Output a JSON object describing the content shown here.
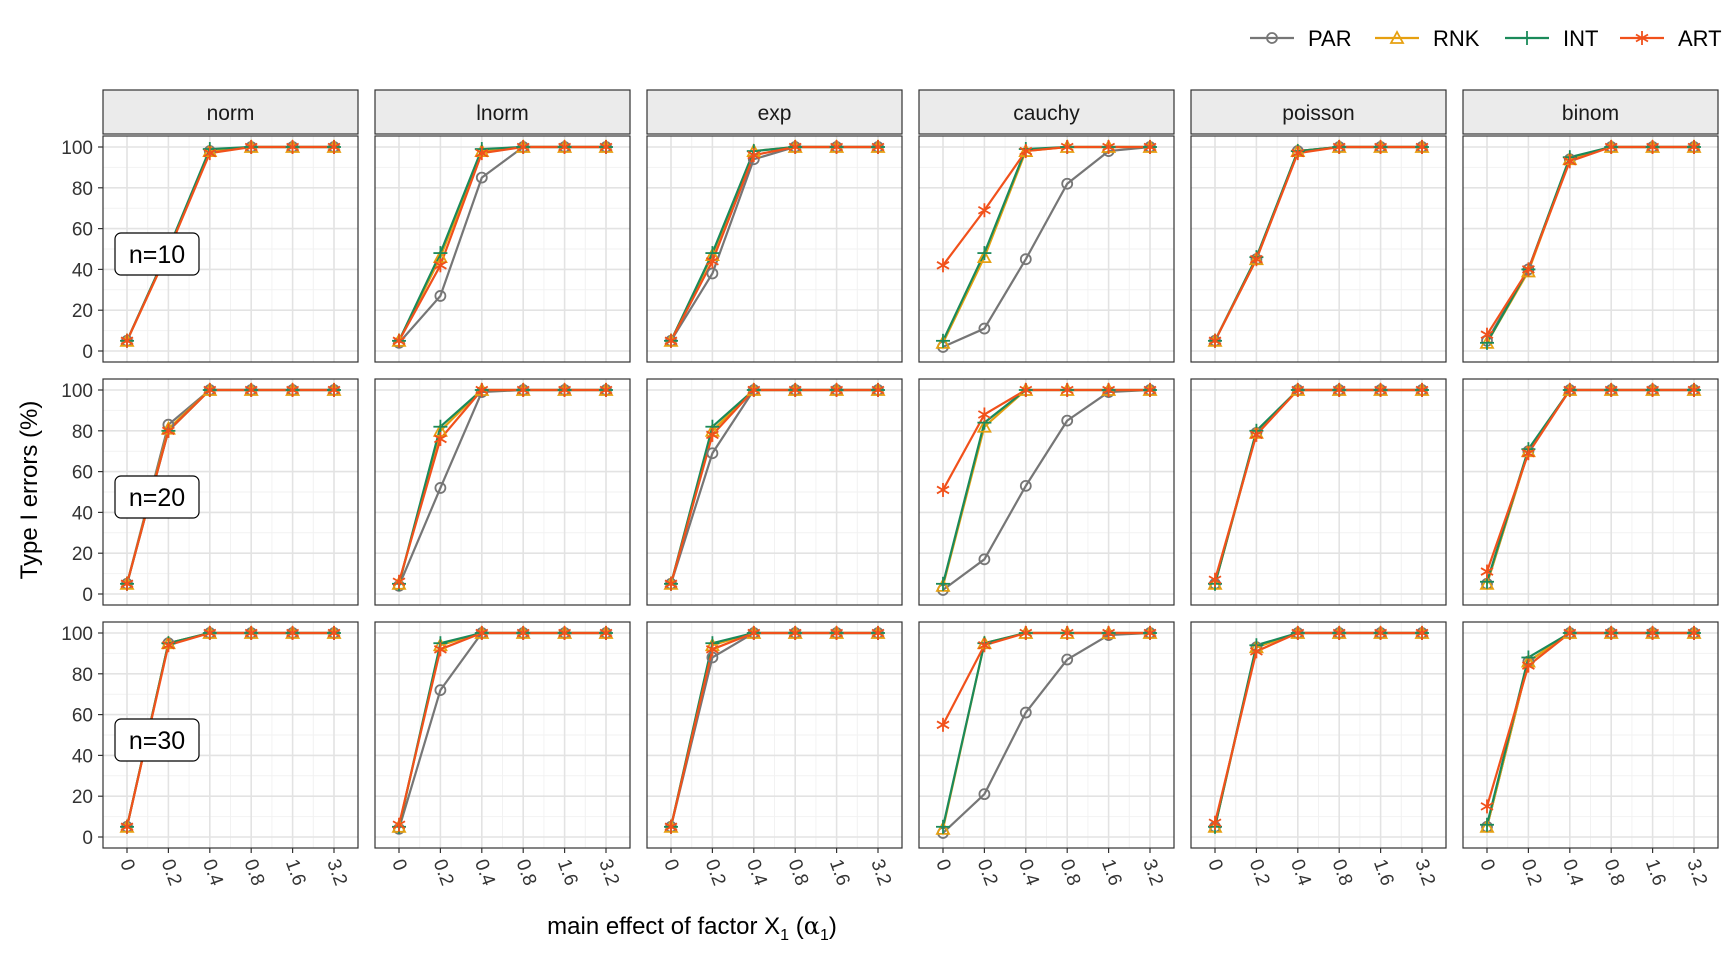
{
  "chart_data": {
    "type": "line",
    "facet_cols": [
      "norm",
      "lnorm",
      "exp",
      "cauchy",
      "poisson",
      "binom"
    ],
    "facet_rows": [
      "n=10",
      "n=20",
      "n=30"
    ],
    "categories": [
      "0",
      "0.2",
      "0.4",
      "0.8",
      "1.6",
      "3.2"
    ],
    "xlabel_parts": {
      "main": "main effect of factor X",
      "sub1": "1",
      "open": " (",
      "alpha": "α",
      "sub2": "1",
      "close": ")"
    },
    "ylabel": "Type I errors (%)",
    "ylim": [
      0,
      100
    ],
    "yticks": [
      0,
      20,
      40,
      60,
      80,
      100
    ],
    "grid": true,
    "legend": {
      "position": "top-right",
      "entries": [
        {
          "name": "PAR",
          "color": "#767676",
          "marker": "circle"
        },
        {
          "name": "RNK",
          "color": "#e6a010",
          "marker": "triangle"
        },
        {
          "name": "INT",
          "color": "#1b8a5a",
          "marker": "plus"
        },
        {
          "name": "ART",
          "color": "#f1511b",
          "marker": "asterisk"
        }
      ]
    },
    "panels": [
      [
        {
          "PAR": [
            5,
            50,
            98,
            100,
            100,
            100
          ],
          "RNK": [
            5,
            49,
            98,
            100,
            100,
            100
          ],
          "INT": [
            5,
            50,
            99,
            100,
            100,
            100
          ],
          "ART": [
            5,
            49,
            97,
            100,
            100,
            100
          ]
        },
        {
          "PAR": [
            4,
            27,
            85,
            100,
            100,
            100
          ],
          "RNK": [
            5,
            46,
            98,
            100,
            100,
            100
          ],
          "INT": [
            5,
            48,
            99,
            100,
            100,
            100
          ],
          "ART": [
            5,
            42,
            97,
            100,
            100,
            100
          ]
        },
        {
          "PAR": [
            5,
            38,
            94,
            100,
            100,
            100
          ],
          "RNK": [
            5,
            47,
            98,
            100,
            100,
            100
          ],
          "INT": [
            5,
            48,
            98,
            100,
            100,
            100
          ],
          "ART": [
            5,
            44,
            96,
            100,
            100,
            100
          ]
        },
        {
          "PAR": [
            2,
            11,
            45,
            82,
            98,
            100
          ],
          "RNK": [
            4,
            46,
            98,
            100,
            100,
            100
          ],
          "INT": [
            5,
            48,
            99,
            100,
            100,
            100
          ],
          "ART": [
            42,
            69,
            98,
            100,
            100,
            100
          ]
        },
        {
          "PAR": [
            5,
            45,
            98,
            100,
            100,
            100
          ],
          "RNK": [
            5,
            45,
            98,
            100,
            100,
            100
          ],
          "INT": [
            5,
            46,
            98,
            100,
            100,
            100
          ],
          "ART": [
            5,
            45,
            97,
            100,
            100,
            100
          ]
        },
        {
          "PAR": [
            5,
            40,
            94,
            100,
            100,
            100
          ],
          "RNK": [
            4,
            39,
            94,
            100,
            100,
            100
          ],
          "INT": [
            4,
            40,
            95,
            100,
            100,
            100
          ],
          "ART": [
            8,
            40,
            93,
            100,
            100,
            100
          ]
        }
      ],
      [
        {
          "PAR": [
            5,
            83,
            100,
            100,
            100,
            100
          ],
          "RNK": [
            5,
            81,
            100,
            100,
            100,
            100
          ],
          "INT": [
            5,
            80,
            100,
            100,
            100,
            100
          ],
          "ART": [
            5,
            80,
            100,
            100,
            100,
            100
          ]
        },
        {
          "PAR": [
            4,
            52,
            99,
            100,
            100,
            100
          ],
          "RNK": [
            5,
            80,
            100,
            100,
            100,
            100
          ],
          "INT": [
            5,
            82,
            100,
            100,
            100,
            100
          ],
          "ART": [
            6,
            76,
            100,
            100,
            100,
            100
          ]
        },
        {
          "PAR": [
            5,
            69,
            100,
            100,
            100,
            100
          ],
          "RNK": [
            5,
            80,
            100,
            100,
            100,
            100
          ],
          "INT": [
            5,
            82,
            100,
            100,
            100,
            100
          ],
          "ART": [
            5,
            78,
            100,
            100,
            100,
            100
          ]
        },
        {
          "PAR": [
            2,
            17,
            53,
            85,
            99,
            100
          ],
          "RNK": [
            4,
            82,
            100,
            100,
            100,
            100
          ],
          "INT": [
            5,
            84,
            100,
            100,
            100,
            100
          ],
          "ART": [
            51,
            88,
            100,
            100,
            100,
            100
          ]
        },
        {
          "PAR": [
            5,
            79,
            100,
            100,
            100,
            100
          ],
          "RNK": [
            5,
            79,
            100,
            100,
            100,
            100
          ],
          "INT": [
            5,
            80,
            100,
            100,
            100,
            100
          ],
          "ART": [
            7,
            78,
            100,
            100,
            100,
            100
          ]
        },
        {
          "PAR": [
            5,
            70,
            100,
            100,
            100,
            100
          ],
          "RNK": [
            5,
            70,
            100,
            100,
            100,
            100
          ],
          "INT": [
            6,
            71,
            100,
            100,
            100,
            100
          ],
          "ART": [
            11,
            69,
            100,
            100,
            100,
            100
          ]
        }
      ],
      [
        {
          "PAR": [
            5,
            95,
            100,
            100,
            100,
            100
          ],
          "RNK": [
            5,
            95,
            100,
            100,
            100,
            100
          ],
          "INT": [
            5,
            95,
            100,
            100,
            100,
            100
          ],
          "ART": [
            5,
            94,
            100,
            100,
            100,
            100
          ]
        },
        {
          "PAR": [
            4,
            72,
            100,
            100,
            100,
            100
          ],
          "RNK": [
            5,
            94,
            100,
            100,
            100,
            100
          ],
          "INT": [
            5,
            95,
            100,
            100,
            100,
            100
          ],
          "ART": [
            6,
            92,
            100,
            100,
            100,
            100
          ]
        },
        {
          "PAR": [
            5,
            88,
            100,
            100,
            100,
            100
          ],
          "RNK": [
            5,
            94,
            100,
            100,
            100,
            100
          ],
          "INT": [
            5,
            95,
            100,
            100,
            100,
            100
          ],
          "ART": [
            5,
            92,
            100,
            100,
            100,
            100
          ]
        },
        {
          "PAR": [
            2,
            21,
            61,
            87,
            99,
            100
          ],
          "RNK": [
            4,
            95,
            100,
            100,
            100,
            100
          ],
          "INT": [
            5,
            95,
            100,
            100,
            100,
            100
          ],
          "ART": [
            55,
            94,
            100,
            100,
            100,
            100
          ]
        },
        {
          "PAR": [
            5,
            93,
            100,
            100,
            100,
            100
          ],
          "RNK": [
            5,
            93,
            100,
            100,
            100,
            100
          ],
          "INT": [
            5,
            94,
            100,
            100,
            100,
            100
          ],
          "ART": [
            7,
            91,
            100,
            100,
            100,
            100
          ]
        },
        {
          "PAR": [
            5,
            86,
            100,
            100,
            100,
            100
          ],
          "RNK": [
            5,
            86,
            100,
            100,
            100,
            100
          ],
          "INT": [
            6,
            88,
            100,
            100,
            100,
            100
          ],
          "ART": [
            15,
            84,
            100,
            100,
            100,
            100
          ]
        }
      ]
    ]
  }
}
